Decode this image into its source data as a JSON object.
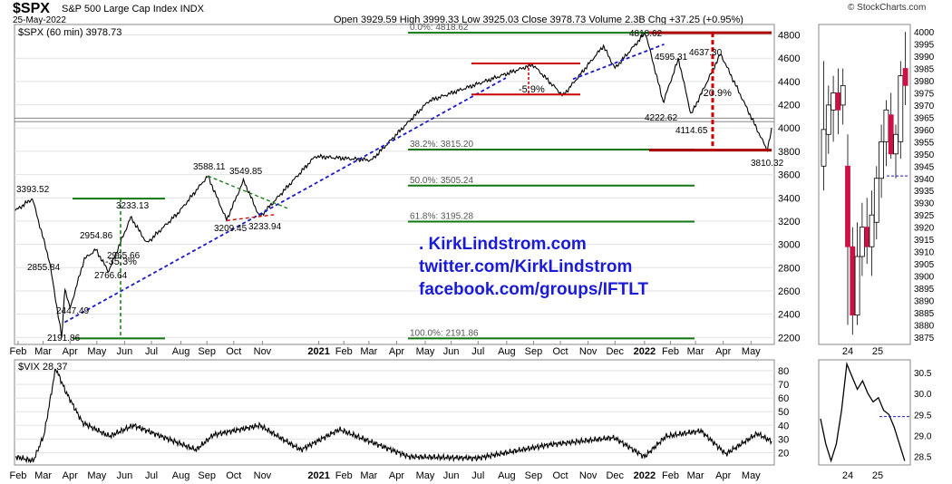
{
  "header": {
    "symbol": "$SPX",
    "description": "S&P 500 Large Cap Index  INDX",
    "date": "25-May-2022",
    "quote": "Open 3929.59   High 3999.33   Low 3925.03   Close 3978.73   Volume 2.3B   Chg +37.25 (+0.95%)",
    "brand": "© StockCharts.com"
  },
  "chart_data": [
    {
      "type": "line",
      "legend": "$SPX (60 min) 3978.73",
      "x_ticks": [
        "Feb",
        "Mar",
        "Apr",
        "May",
        "Jun",
        "Jul",
        "Aug",
        "Sep",
        "Oct",
        "Nov",
        "2021",
        "Feb",
        "Mar",
        "Apr",
        "May",
        "Jun",
        "Jul",
        "Aug",
        "Sep",
        "Oct",
        "Nov",
        "Dec",
        "2022",
        "Feb",
        "Mar",
        "Apr",
        "May"
      ],
      "y_ticks": [
        2200,
        2400,
        2600,
        2800,
        3000,
        3200,
        3400,
        3600,
        3800,
        4000,
        4200,
        4400,
        4600,
        4800
      ],
      "ylim": [
        2140,
        4890
      ],
      "series_keypoints": [
        {
          "date": "2020-01-31",
          "value": 3290
        },
        {
          "date": "2020-02-19",
          "value": 3393.52
        },
        {
          "date": "2020-03-09",
          "value": 2855.84
        },
        {
          "date": "2020-03-23",
          "value": 2191.86
        },
        {
          "date": "2020-03-26",
          "value": 2630
        },
        {
          "date": "2020-04-01",
          "value": 2447.49
        },
        {
          "date": "2020-04-17",
          "value": 2874
        },
        {
          "date": "2020-05-14",
          "value": 2766.64
        },
        {
          "date": "2020-04-30",
          "value": 2954.86
        },
        {
          "date": "2020-06-08",
          "value": 3233.13
        },
        {
          "date": "2020-06-26",
          "value": 3010
        },
        {
          "date": "2020-07-31",
          "value": 3271
        },
        {
          "date": "2020-09-02",
          "value": 3588.11
        },
        {
          "date": "2020-09-23",
          "value": 3209.45
        },
        {
          "date": "2020-10-12",
          "value": 3549.85
        },
        {
          "date": "2020-10-30",
          "value": 3233.94
        },
        {
          "date": "2020-12-31",
          "value": 3756
        },
        {
          "date": "2021-03-04",
          "value": 3724
        },
        {
          "date": "2021-05-07",
          "value": 4232
        },
        {
          "date": "2021-08-31",
          "value": 4545
        },
        {
          "date": "2021-10-04",
          "value": 4278
        },
        {
          "date": "2021-11-18",
          "value": 4705
        },
        {
          "date": "2021-12-01",
          "value": 4513
        },
        {
          "date": "2022-01-04",
          "value": 4818.62
        },
        {
          "date": "2022-01-24",
          "value": 4222.62
        },
        {
          "date": "2022-02-10",
          "value": 4595.31
        },
        {
          "date": "2022-02-24",
          "value": 4114.65
        },
        {
          "date": "2022-03-29",
          "value": 4637.3
        },
        {
          "date": "2022-05-20",
          "value": 3810.32
        },
        {
          "date": "2022-05-25",
          "value": 3978.73
        }
      ],
      "point_labels": [
        "3393.52",
        "2855.84",
        "2191.86",
        "2447.49",
        "2954.86",
        "2965.66",
        "2766.64",
        "3233.13",
        "3588.11",
        "3549.85",
        "3209.45",
        "3233.94",
        "4818.62",
        "4595.31",
        "4637.30",
        "4222.62",
        "4114.65",
        "3810.32"
      ],
      "fibonacci": [
        {
          "label": "0.0%: 4818.62",
          "value": 4818.62
        },
        {
          "label": "38.2%: 3815.20",
          "value": 3815.2
        },
        {
          "label": "50.0%: 3505.24",
          "value": 3505.24
        },
        {
          "label": "61.8%: 3195.28",
          "value": 3195.28
        },
        {
          "label": "100.0%: 2191.86",
          "value": 2191.86
        }
      ],
      "annotations": [
        "-35.3%",
        "-5.9%",
        "-20.9%"
      ],
      "overlay_text": [
        ".  KirkLindstrom.com",
        "twitter.com/KirkLindstrom",
        "facebook.com/groups/IFTLT"
      ],
      "colors": {
        "price": "#000000",
        "down_tick": "#cc0000",
        "trend": "#1a1acc",
        "fib": "#117711",
        "box": "#cc0000"
      }
    },
    {
      "type": "line",
      "legend": "$VIX 28.37",
      "x_ticks": [
        "Feb",
        "Mar",
        "Apr",
        "May",
        "Jun",
        "Jul",
        "Aug",
        "Sep",
        "Oct",
        "Nov",
        "2021",
        "Feb",
        "Mar",
        "Apr",
        "May",
        "Jun",
        "Jul",
        "Aug",
        "Sep",
        "Oct",
        "Nov",
        "Dec",
        "2022",
        "Feb",
        "Mar",
        "Apr",
        "May"
      ],
      "y_ticks": [
        20,
        30,
        40,
        50,
        60,
        70,
        80
      ],
      "ylim": [
        11,
        88
      ],
      "series_keypoints": [
        {
          "date": "2020-01-31",
          "value": 17
        },
        {
          "date": "2020-02-20",
          "value": 14
        },
        {
          "date": "2020-03-03",
          "value": 33
        },
        {
          "date": "2020-03-16",
          "value": 82
        },
        {
          "date": "2020-03-27",
          "value": 65
        },
        {
          "date": "2020-04-15",
          "value": 42
        },
        {
          "date": "2020-05-15",
          "value": 32
        },
        {
          "date": "2020-06-11",
          "value": 40
        },
        {
          "date": "2020-08-20",
          "value": 22
        },
        {
          "date": "2020-09-08",
          "value": 33
        },
        {
          "date": "2020-10-30",
          "value": 40
        },
        {
          "date": "2020-12-15",
          "value": 22
        },
        {
          "date": "2021-01-27",
          "value": 37
        },
        {
          "date": "2021-04-15",
          "value": 17
        },
        {
          "date": "2021-06-30",
          "value": 16
        },
        {
          "date": "2021-09-20",
          "value": 26
        },
        {
          "date": "2021-11-30",
          "value": 31
        },
        {
          "date": "2022-01-03",
          "value": 17
        },
        {
          "date": "2022-01-27",
          "value": 32
        },
        {
          "date": "2022-03-07",
          "value": 36
        },
        {
          "date": "2022-04-04",
          "value": 19
        },
        {
          "date": "2022-05-09",
          "value": 34
        },
        {
          "date": "2022-05-25",
          "value": 28.37
        }
      ]
    },
    {
      "type": "candlestick",
      "x_ticks": [
        "24",
        "25"
      ],
      "y_ticks": [
        3875,
        3880,
        3885,
        3890,
        3895,
        3900,
        3905,
        3910,
        3915,
        3920,
        3925,
        3930,
        3935,
        3940,
        3945,
        3950,
        3955,
        3960,
        3965,
        3970,
        3975,
        3980,
        3985,
        3990,
        3995,
        4000
      ],
      "ylim": [
        3872,
        4003
      ],
      "candles": [
        {
          "o": 3945,
          "h": 3988,
          "l": 3935,
          "c": 3960
        },
        {
          "o": 3958,
          "h": 3978,
          "l": 3950,
          "c": 3970
        },
        {
          "o": 3968,
          "h": 3982,
          "l": 3955,
          "c": 3975
        },
        {
          "o": 3975,
          "h": 3985,
          "l": 3958,
          "c": 3968
        },
        {
          "o": 3970,
          "h": 3985,
          "l": 3962,
          "c": 3978
        },
        {
          "o": 3945,
          "h": 3958,
          "l": 3880,
          "c": 3912
        },
        {
          "o": 3912,
          "h": 3920,
          "l": 3876,
          "c": 3884
        },
        {
          "o": 3884,
          "h": 3922,
          "l": 3880,
          "c": 3908
        },
        {
          "o": 3908,
          "h": 3930,
          "l": 3900,
          "c": 3920
        },
        {
          "o": 3920,
          "h": 3932,
          "l": 3905,
          "c": 3912
        },
        {
          "o": 3912,
          "h": 3935,
          "l": 3900,
          "c": 3925
        },
        {
          "o": 3922,
          "h": 3945,
          "l": 3915,
          "c": 3940
        },
        {
          "o": 3940,
          "h": 3962,
          "l": 3932,
          "c": 3955
        },
        {
          "o": 3955,
          "h": 3972,
          "l": 3945,
          "c": 3968
        },
        {
          "o": 3966,
          "h": 3975,
          "l": 3948,
          "c": 3950
        },
        {
          "o": 3950,
          "h": 3962,
          "l": 3940,
          "c": 3958
        },
        {
          "o": 3955,
          "h": 3988,
          "l": 3948,
          "c": 3982
        },
        {
          "o": 3985,
          "h": 4000,
          "l": 3970,
          "c": 3978
        }
      ]
    },
    {
      "type": "line",
      "x_ticks": [
        "24",
        "25"
      ],
      "y_ticks": [
        28.5,
        29.0,
        29.5,
        30.0,
        30.5
      ],
      "ylim": [
        28.3,
        30.8
      ],
      "values": [
        29.4,
        28.8,
        28.4,
        28.8,
        29.6,
        30.7,
        30.4,
        30.1,
        30.3,
        30.0,
        29.8,
        29.9,
        29.6,
        29.5,
        29.2,
        28.8,
        28.4
      ]
    }
  ]
}
